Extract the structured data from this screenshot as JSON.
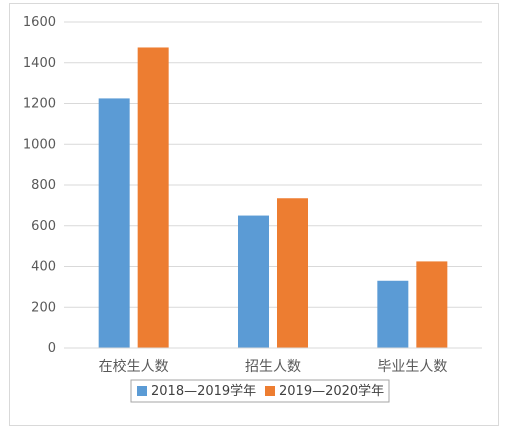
{
  "chart_data": {
    "type": "bar",
    "categories": [
      "在校生人数",
      "招生人数",
      "毕业生人数"
    ],
    "series": [
      {
        "name": "2018—2019学年",
        "color": "#5B9BD5",
        "values": [
          1225,
          650,
          330
        ]
      },
      {
        "name": "2019—2020学年",
        "color": "#ED7D31",
        "values": [
          1475,
          735,
          425
        ]
      }
    ],
    "yticks": [
      "0",
      "200",
      "400",
      "600",
      "800",
      "1000",
      "1200",
      "1400",
      "1600"
    ],
    "ylim": [
      0,
      1600
    ],
    "grid": true,
    "legend_position": "bottom",
    "gridline_color": "#d9d9d9"
  }
}
